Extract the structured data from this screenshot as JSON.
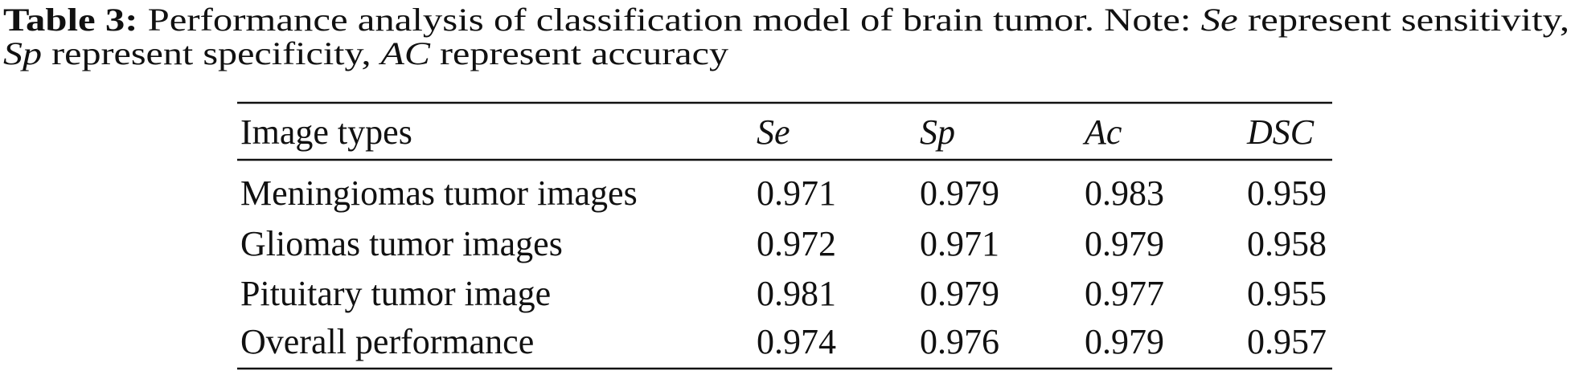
{
  "caption": {
    "lines": [
      [
        {
          "text": "Table 3:",
          "style": "bold"
        },
        {
          "text": " Performance analysis of classification model of brain tumor. Note: ",
          "style": "normal"
        },
        {
          "text": "Se",
          "style": "italic"
        },
        {
          "text": " represent sensitivity,",
          "style": "normal"
        }
      ],
      [
        {
          "text": "Sp",
          "style": "italic"
        },
        {
          "text": " represent specificity, ",
          "style": "normal"
        },
        {
          "text": "AC",
          "style": "italic"
        },
        {
          "text": " represent accuracy",
          "style": "normal"
        }
      ]
    ]
  },
  "table": {
    "header": [
      {
        "text": "Image types",
        "style": "normal"
      },
      {
        "text": "Se",
        "style": "italic"
      },
      {
        "text": "Sp",
        "style": "italic"
      },
      {
        "text": "Ac",
        "style": "italic"
      },
      {
        "text": "DSC",
        "style": "italic"
      }
    ],
    "rows": [
      [
        "Meningiomas tumor images",
        "0.971",
        "0.979",
        "0.983",
        "0.959"
      ],
      [
        "Gliomas tumor images",
        "0.972",
        "0.971",
        "0.979",
        "0.958"
      ],
      [
        "Pituitary tumor image",
        "0.981",
        "0.979",
        "0.977",
        "0.955"
      ],
      [
        "Overall performance",
        "0.974",
        "0.976",
        "0.979",
        "0.957"
      ]
    ]
  }
}
